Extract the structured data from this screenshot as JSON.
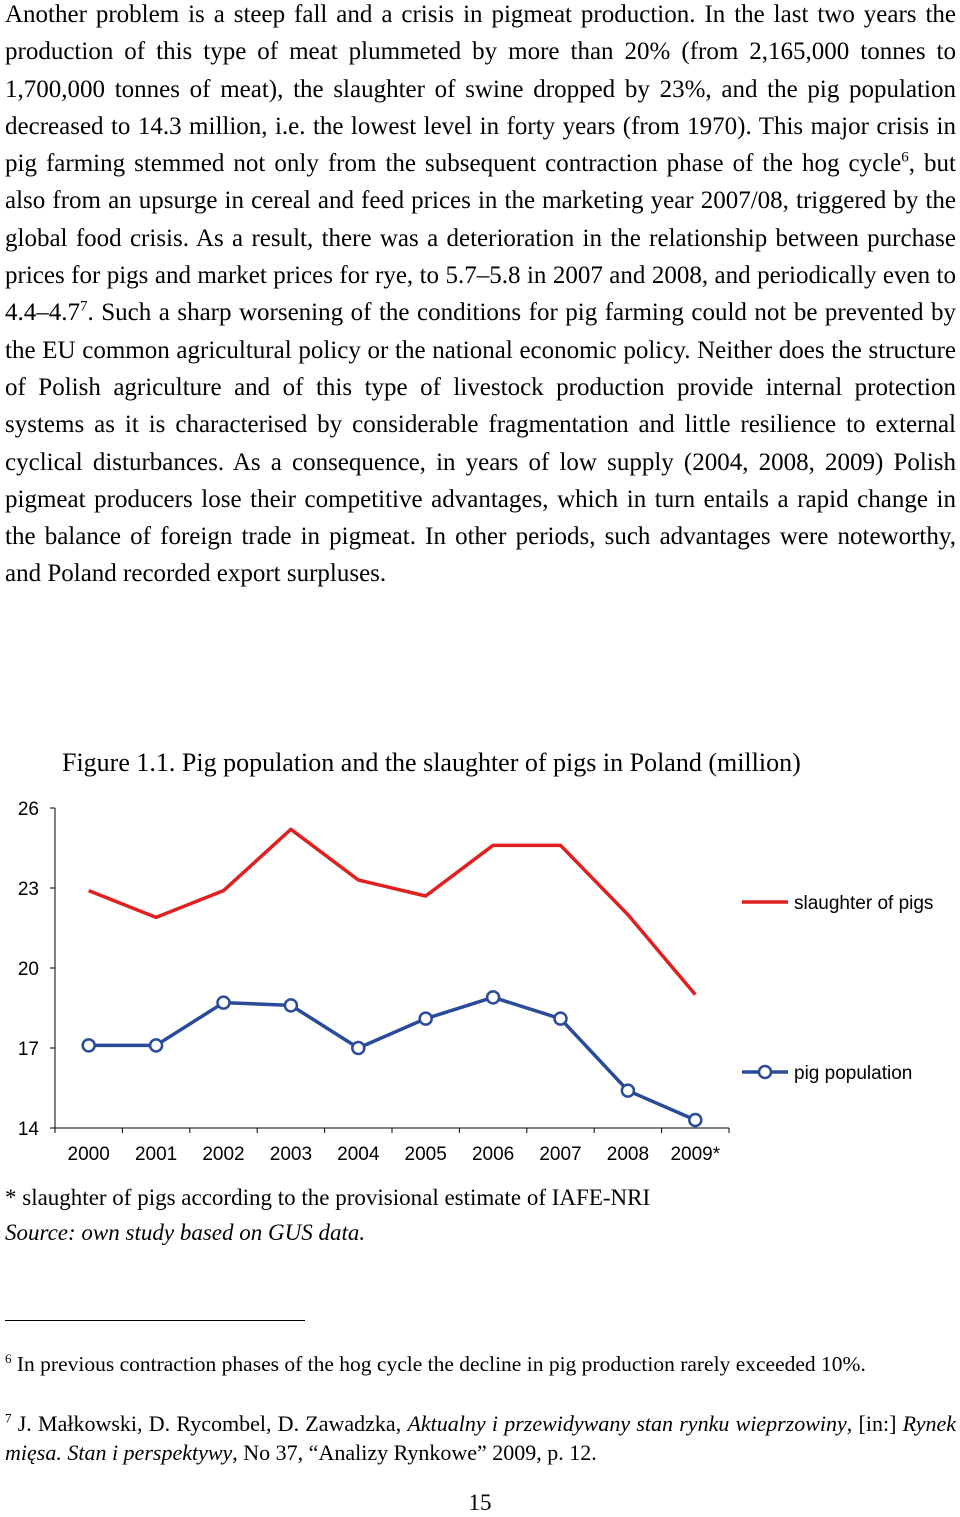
{
  "body_text": {
    "p1": "Another problem is a steep fall and a crisis in pigmeat production. In the last two years the production of this type of meat plummeted by more than 20% (from 2,165,000 tonnes to 1,700,000 tonnes of meat), the slaughter of swine dropped by 23%, and the pig population decreased to 14.3 million, i.e. the lowest level in forty years (from 1970). This major crisis in pig farming stemmed not only from the subsequent contraction phase of the hog cycle",
    "ref1": "6",
    "p2": ", but also from an upsurge in cereal and feed prices in the marketing year 2007/08, triggered by the global food crisis. As a result, there was a deterioration in the relationship between purchase prices for pigs and market prices for rye, to 5.7–5.8 in 2007 and 2008, and periodically even to 4.4–4.7",
    "ref2": "7",
    "p3": ". Such a sharp worsening of the conditions for pig farming could not be prevented by the EU common agricultural policy or the national economic policy. Neither does the structure of Polish agriculture and of this type of livestock production provide internal protection systems as it is characterised by considerable fragmentation and little resilience to external cyclical disturbances. As a consequence, in years of low supply (2004, 2008, 2009) Polish pigmeat producers lose their competitive advantages, which in turn entails a rapid change in the balance of foreign trade in pigmeat. In other periods, such advantages were noteworthy, and Poland recorded export surpluses."
  },
  "figure": {
    "caption": "Figure 1.1. Pig population and the slaughter of pigs in Poland (million)",
    "note": "* slaughter of pigs according to the provisional estimate of IAFE-NRI",
    "source": "Source: own study based on GUS data."
  },
  "chart_data": {
    "type": "line",
    "title": "",
    "xlabel": "",
    "ylabel": "",
    "categories": [
      "2000",
      "2001",
      "2002",
      "2003",
      "2004",
      "2005",
      "2006",
      "2007",
      "2008",
      "2009*"
    ],
    "ylim": [
      14,
      26
    ],
    "yticks": [
      "26",
      "23",
      "20",
      "17",
      "14"
    ],
    "grid": false,
    "legend_position": "right",
    "series": [
      {
        "name": "slaughter of pigs",
        "color": "#e02020",
        "marker": "none",
        "values": [
          22.9,
          21.9,
          22.9,
          25.2,
          23.3,
          22.7,
          24.6,
          24.6,
          22.0,
          19.0
        ]
      },
      {
        "name": "pig population",
        "color": "#2a4a9a",
        "marker": "circle",
        "values": [
          17.1,
          17.1,
          18.7,
          18.6,
          17.0,
          18.1,
          18.9,
          18.1,
          15.4,
          14.3
        ]
      }
    ]
  },
  "footnotes": [
    {
      "num": "6",
      "text": " In previous contraction phases of the hog cycle the decline in pig production rarely exceeded 10%."
    },
    {
      "num": "7",
      "pre": " J. Małkowski, D. Rycombel, D. Zawadzka, ",
      "italic1": "Aktualny i przewidywany stan rynku wieprzowiny",
      "mid": ", [in:] ",
      "italic2": "Rynek mięsa. Stan i perspektywy",
      "post": ", No 37, “Analizy Rynkowe” 2009, p. 12."
    }
  ],
  "page_number": "15"
}
